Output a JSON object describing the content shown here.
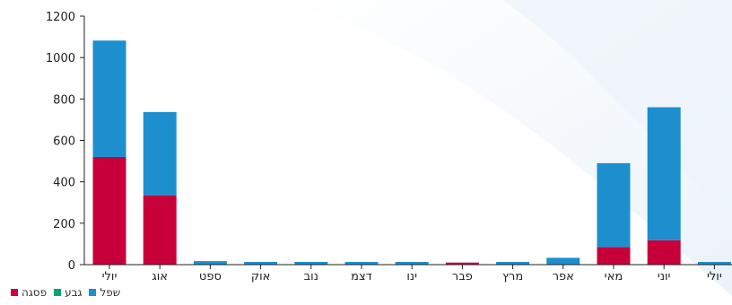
{
  "chart_data": {
    "type": "bar",
    "stacked": true,
    "categories": [
      "יולי",
      "אוג",
      "ספט",
      "אוק",
      "נוב",
      "דצמ",
      "ינו",
      "פבר",
      "מרץ",
      "אפר",
      "מאי",
      "יוני",
      "יולי"
    ],
    "series": [
      {
        "name": "פסגה",
        "color": "#c8003a",
        "values": [
          520,
          335,
          0,
          0,
          0,
          0,
          0,
          10,
          0,
          0,
          85,
          118,
          0
        ]
      },
      {
        "name": "גבע",
        "color": "#0aa56e",
        "values": [
          0,
          0,
          0,
          0,
          0,
          0,
          0,
          0,
          0,
          0,
          0,
          0,
          0
        ]
      },
      {
        "name": "שפל",
        "color": "#1d8fce",
        "values": [
          562,
          402,
          17,
          13,
          13,
          13,
          13,
          0,
          13,
          33,
          405,
          642,
          13
        ]
      }
    ],
    "title": "",
    "xlabel": "",
    "ylabel": "",
    "ylim": [
      0,
      1200
    ],
    "yticks": [
      0,
      200,
      400,
      600,
      800,
      1000,
      1200
    ],
    "grid": false,
    "legend": "bottom-left"
  }
}
